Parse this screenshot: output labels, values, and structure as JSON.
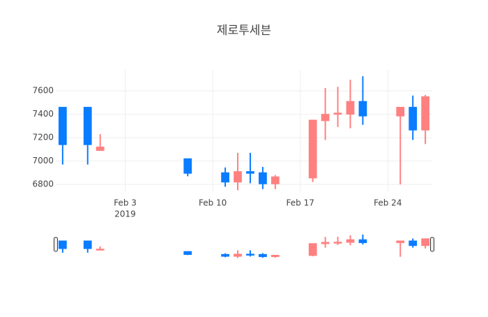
{
  "chart_data": {
    "type": "candlestick",
    "title": "제로투세븐",
    "x": [
      "2019-01-29",
      "2019-01-31",
      "2019-02-01",
      "2019-02-08",
      "2019-02-11",
      "2019-02-12",
      "2019-02-13",
      "2019-02-14",
      "2019-02-15",
      "2019-02-18",
      "2019-02-19",
      "2019-02-20",
      "2019-02-21",
      "2019-02-22",
      "2019-02-25",
      "2019-02-26",
      "2019-02-27"
    ],
    "open": [
      7460,
      7460,
      7090,
      7020,
      6900,
      6820,
      6910,
      6900,
      6805,
      6855,
      7345,
      7400,
      7400,
      7510,
      7385,
      7460,
      7265
    ],
    "high": [
      7460,
      7460,
      7230,
      7020,
      6945,
      7070,
      7070,
      6950,
      6880,
      7350,
      7625,
      7635,
      7695,
      7725,
      7460,
      7560,
      7565
    ],
    "low": [
      6970,
      6970,
      7090,
      6870,
      6780,
      6750,
      6810,
      6760,
      6760,
      6820,
      7180,
      7290,
      7280,
      7310,
      6800,
      7180,
      7145
    ],
    "close": [
      7140,
      7140,
      7120,
      6895,
      6820,
      6910,
      6895,
      6805,
      6865,
      7350,
      7400,
      7410,
      7510,
      7385,
      7460,
      7265,
      7550
    ],
    "increasing_color": "#ff8080",
    "decreasing_color": "#0a7cff",
    "ylim": [
      6735,
      7780
    ],
    "yticks": [
      6800,
      7000,
      7200,
      7400,
      7600
    ],
    "xticks": [
      {
        "value": "2019-02-03",
        "label": "Feb 3"
      },
      {
        "value": "2019-02-10",
        "label": "Feb 10"
      },
      {
        "value": "2019-02-17",
        "label": "Feb 17"
      },
      {
        "value": "2019-02-24",
        "label": "Feb 24"
      }
    ],
    "x_year_label": "2019",
    "grid": true,
    "rangeslider": true
  }
}
